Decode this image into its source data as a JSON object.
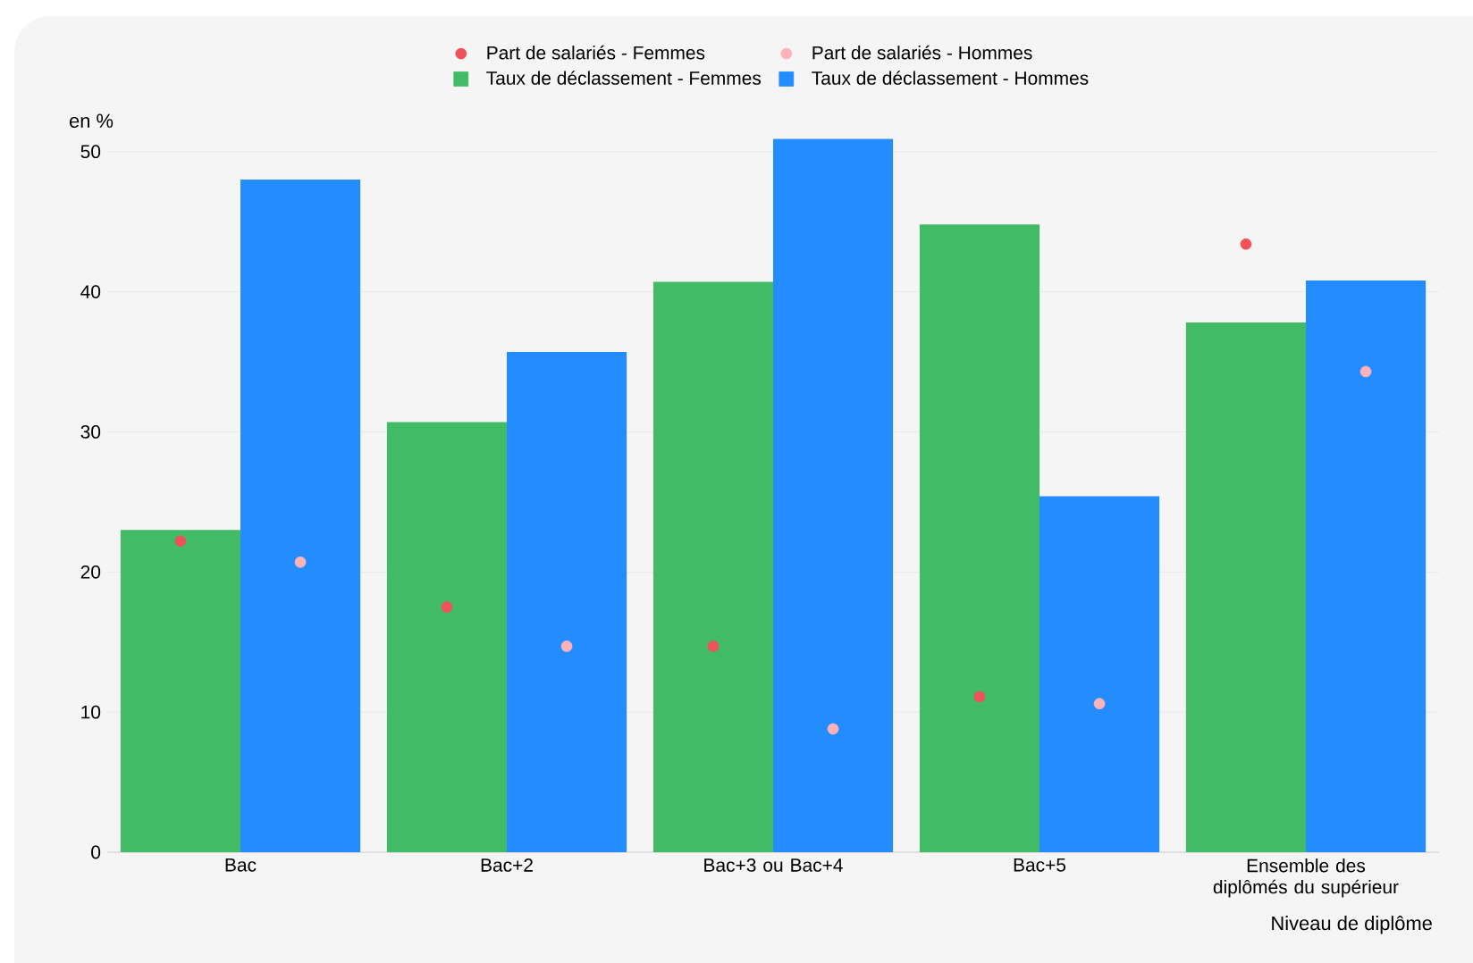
{
  "chart_data": {
    "type": "bar",
    "ylabel": "en %",
    "xlabel": "Niveau de diplôme",
    "categories": [
      "Bac",
      "Bac+2",
      "Bac+3 ou Bac+4",
      "Bac+5",
      "Ensemble des diplômés du supérieur"
    ],
    "series": [
      {
        "name": "Part de salariés - Femmes",
        "type": "scatter",
        "color": "#f0525a",
        "x": [
          "Bac",
          "Bac+2",
          "Bac+3 ou Bac+4",
          "Bac+5",
          "Ensemble des diplômés du supérieur"
        ],
        "values": [
          22.2,
          17.5,
          14.7,
          11.1,
          43.4
        ]
      },
      {
        "name": "Part de salariés - Hommes",
        "type": "scatter",
        "color": "#ffb3b8",
        "x": [
          "Bac",
          "Bac+2",
          "Bac+3 ou Bac+4",
          "Bac+5",
          "Ensemble des diplômés du supérieur"
        ],
        "values": [
          20.7,
          14.7,
          8.8,
          10.6,
          34.3
        ]
      },
      {
        "name": "Taux de déclassement - Femmes",
        "color": "#41bb66",
        "values": [
          23.0,
          30.7,
          40.7,
          44.8,
          37.8
        ]
      },
      {
        "name": "Taux de déclassement - Hommes",
        "color": "#238cff",
        "values": [
          48.0,
          35.7,
          50.9,
          25.4,
          40.8
        ]
      }
    ],
    "ylim": [
      0,
      51
    ],
    "yticks": [
      0,
      10,
      20,
      30,
      40,
      50
    ],
    "grid": "y",
    "legend": "top"
  }
}
